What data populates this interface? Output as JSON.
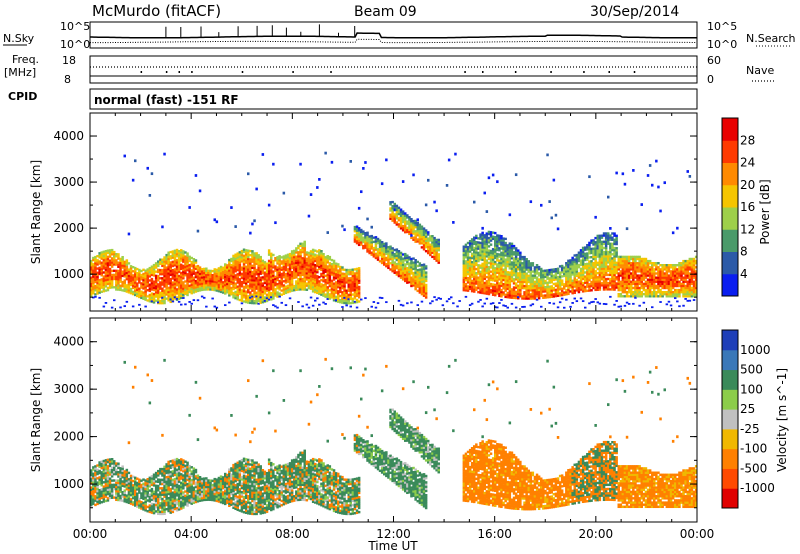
{
  "header": {
    "station": "McMurdo (fitACF)",
    "beam": "Beam 09",
    "date": "30/Sep/2014"
  },
  "noise_panel": {
    "left_label": "N.Sky",
    "right_label": "N.Search",
    "left_ticks": [
      "10^5",
      "10^0"
    ],
    "right_ticks": [
      "10^5",
      "10^0"
    ]
  },
  "freq_panel": {
    "left_label_line1": "Freq.",
    "left_label_line2": "[MHz]",
    "left_ticks": [
      "18",
      "8"
    ],
    "right_label": "Nave",
    "right_ticks": [
      "60",
      "0"
    ]
  },
  "cpid": {
    "label": "CPID",
    "text": "normal (fast) -151 RF"
  },
  "chart_data": [
    {
      "type": "heatmap",
      "quantity": "Power",
      "ylabel": "Slant Range [km]",
      "yticks": [
        "1000",
        "2000",
        "3000",
        "4000"
      ],
      "ylim": [
        200,
        4500
      ],
      "colorbar_label": "Power [dB]",
      "colorbar_ticks": [
        "4",
        "8",
        "12",
        "16",
        "20",
        "24",
        "28"
      ],
      "colorbar_colors": [
        "#0a1ef0",
        "#2b5aa8",
        "#4a9a6a",
        "#9ed04a",
        "#f5c500",
        "#ff8a00",
        "#ff3a00",
        "#e80000"
      ],
      "clim": [
        0,
        30
      ]
    },
    {
      "type": "heatmap",
      "quantity": "Velocity",
      "ylabel": "Slant Range [km]",
      "yticks": [
        "1000",
        "2000",
        "3000",
        "4000"
      ],
      "ylim": [
        200,
        4500
      ],
      "colorbar_label": "Velocity [m s^-1]",
      "colorbar_ticks": [
        "1000",
        "500",
        "100",
        "25",
        "-25",
        "-100",
        "-500",
        "-1000"
      ],
      "colorbar_colors": [
        "#1f3fb8",
        "#3a78b8",
        "#3a8a5a",
        "#8ccd4a",
        "#c0c0c0",
        "#f0b800",
        "#ff8000",
        "#ff4a00",
        "#e00000"
      ]
    }
  ],
  "x_axis": {
    "label": "Time UT",
    "ticks": [
      "00:00",
      "04:00",
      "08:00",
      "12:00",
      "16:00",
      "20:00",
      "00:00"
    ]
  }
}
